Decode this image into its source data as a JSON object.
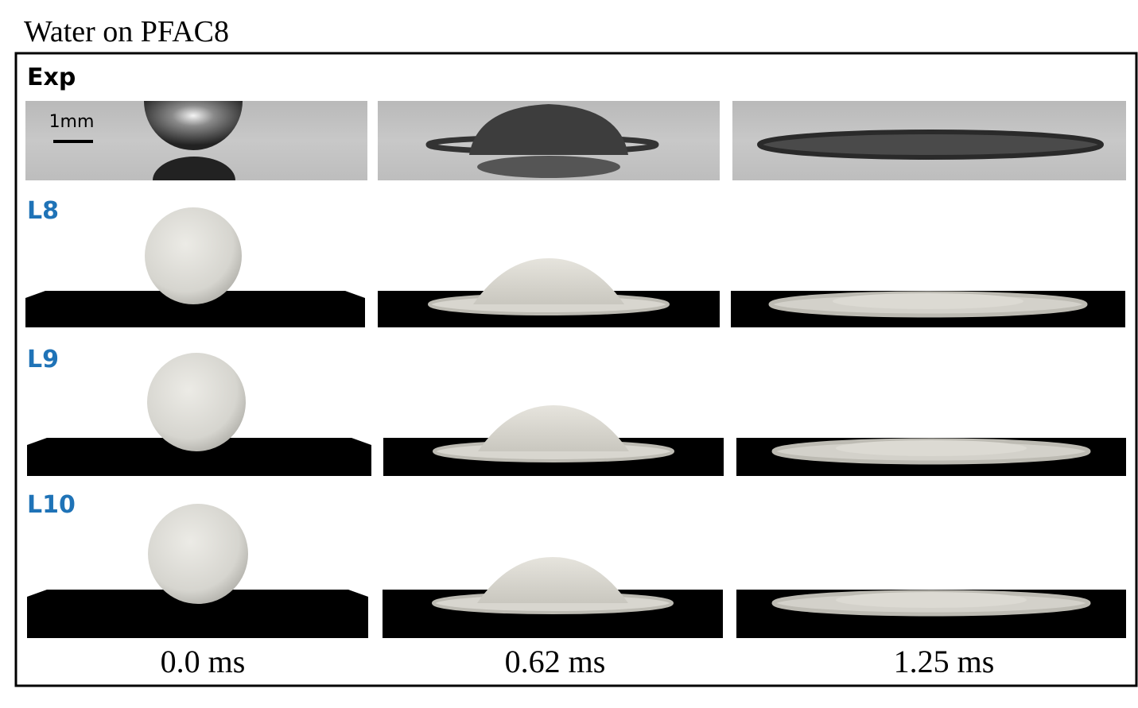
{
  "title": "Water on PFAC8",
  "rows": [
    {
      "label": "Exp"
    },
    {
      "label": "L8"
    },
    {
      "label": "L9"
    },
    {
      "label": "L10"
    }
  ],
  "scale_bar": "1mm",
  "times": [
    "0.0 ms",
    "0.62 ms",
    "1.25 ms"
  ]
}
